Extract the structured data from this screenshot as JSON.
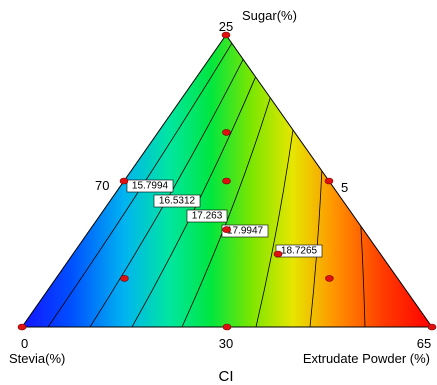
{
  "chart_data": {
    "type": "ternary-contour",
    "title": "CI",
    "vertex_labels": {
      "top": "Sugar(%)",
      "left": "Stevia(%)",
      "right": "Extrudate Powder (%)"
    },
    "tick_labels": {
      "top_vertex": "25",
      "left_edge": "70",
      "right_edge": "5",
      "bottom_left": "0",
      "bottom_mid": "30",
      "bottom_right": "65"
    },
    "contours": [
      {
        "label": "15.7994",
        "value": 15.7994
      },
      {
        "label": "16.5312",
        "value": 16.5312
      },
      {
        "label": "17.263",
        "value": 17.263
      },
      {
        "label": "17.9947",
        "value": 17.9947
      },
      {
        "label": "18.7265",
        "value": 18.7265
      }
    ],
    "color_range": {
      "low": "#0000ff",
      "high": "#ff0000"
    },
    "design_points": [
      {
        "a": 0.0,
        "b": 1.0,
        "c": 0.0
      },
      {
        "a": 0.0,
        "b": 0.5,
        "c": 0.5
      },
      {
        "a": 0.5,
        "b": 0.5,
        "c": 0.0
      },
      {
        "a": 0.5,
        "b": 0.0,
        "c": 0.5
      },
      {
        "a": 1.0,
        "b": 0.0,
        "c": 0.0
      },
      {
        "a": 0.0,
        "b": 0.0,
        "c": 1.0
      },
      {
        "a": 0.3333,
        "b": 0.3333,
        "c": 0.3333
      },
      {
        "a": 0.6667,
        "b": 0.1667,
        "c": 0.1667
      },
      {
        "a": 0.1667,
        "b": 0.6667,
        "c": 0.1667
      },
      {
        "a": 0.1667,
        "b": 0.1667,
        "c": 0.6667
      },
      {
        "a": 0.25,
        "b": 0.25,
        "c": 0.5
      },
      {
        "a": 0.5,
        "b": 0.25,
        "c": 0.25
      }
    ]
  }
}
